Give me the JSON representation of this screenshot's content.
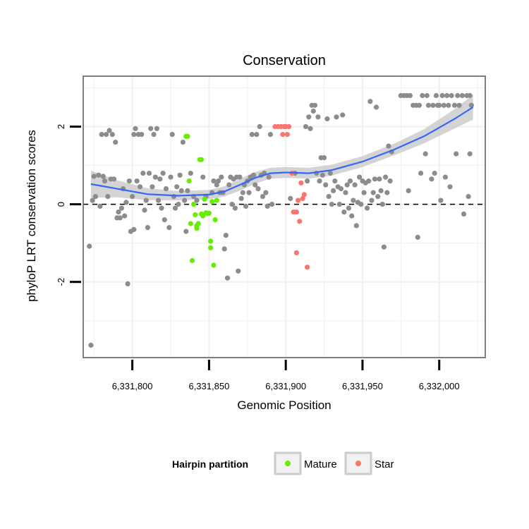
{
  "chart_data": {
    "type": "scatter",
    "title": "Conservation",
    "xlabel": "Genomic Position",
    "ylabel": "phyloP LRT conservation scores",
    "xlim": [
      6331768,
      6332030
    ],
    "ylim": [
      -3.95,
      3.3
    ],
    "x_ticks": [
      6331800,
      6331850,
      6331900,
      6331950,
      6332000
    ],
    "x_tick_labels": [
      "6,331,800",
      "6,331,850",
      "6,331,900",
      "6,331,950",
      "6,332,000"
    ],
    "y_ticks": [
      -2,
      0,
      2
    ],
    "y_tick_labels": [
      "-2",
      "0",
      "2"
    ],
    "grid": true,
    "reference_line": {
      "y": 0,
      "style": "dashed",
      "color": "#000000"
    },
    "legend": {
      "title": "Hairpin partition",
      "position": "bottom",
      "entries": [
        {
          "label": "Mature",
          "color": "#66EE00"
        },
        {
          "label": "Star",
          "color": "#F8766D"
        }
      ]
    },
    "colors": {
      "other": "#8C8C8C",
      "smooth_line": "#3366FF",
      "smooth_band": "#CCCCCC",
      "panel_border": "#7F7F7F",
      "grid": "#F2F2F2"
    },
    "smooth": {
      "x": [
        6331773,
        6331790,
        6331810,
        6331830,
        6331850,
        6331860,
        6331870,
        6331880,
        6331890,
        6331900,
        6331915,
        6331930,
        6331950,
        6331970,
        6331990,
        6332010,
        6332022
      ],
      "y": [
        0.52,
        0.4,
        0.26,
        0.22,
        0.25,
        0.33,
        0.5,
        0.68,
        0.8,
        0.82,
        0.8,
        0.88,
        1.1,
        1.4,
        1.75,
        2.2,
        2.5
      ],
      "se": [
        0.35,
        0.22,
        0.15,
        0.12,
        0.12,
        0.13,
        0.15,
        0.15,
        0.14,
        0.14,
        0.14,
        0.14,
        0.14,
        0.15,
        0.18,
        0.25,
        0.32
      ]
    },
    "series": [
      {
        "name": "Mature",
        "points": [
          [
            6331835,
            1.75
          ],
          [
            6331836,
            1.75
          ],
          [
            6331837,
            0.6
          ],
          [
            6331838,
            -0.5
          ],
          [
            6331839,
            -1.45
          ],
          [
            6331840,
            0.0
          ],
          [
            6331841,
            -0.27
          ],
          [
            6331842,
            -0.62
          ],
          [
            6331843,
            -0.5
          ],
          [
            6331844,
            1.15
          ],
          [
            6331845,
            1.15
          ],
          [
            6331846,
            -0.3
          ],
          [
            6331847,
            0.13
          ],
          [
            6331848,
            -0.22
          ],
          [
            6331849,
            -0.24
          ],
          [
            6331850,
            -0.23
          ],
          [
            6331851,
            -1.12
          ],
          [
            6331851,
            -0.95
          ],
          [
            6331852,
            0.07
          ],
          [
            6331853,
            -1.57
          ],
          [
            6331854,
            -0.4
          ],
          [
            6331855,
            0.1
          ],
          [
            6331842,
            -0.55
          ],
          [
            6331845,
            -0.25
          ]
        ]
      },
      {
        "name": "Star",
        "points": [
          [
            6331893,
            2.0
          ],
          [
            6331895,
            2.0
          ],
          [
            6331897,
            2.0
          ],
          [
            6331898,
            1.8
          ],
          [
            6331899,
            2.0
          ],
          [
            6331900,
            2.0
          ],
          [
            6331901,
            1.8
          ],
          [
            6331902,
            2.0
          ],
          [
            6331904,
            0.8
          ],
          [
            6331905,
            -0.2
          ],
          [
            6331907,
            -0.2
          ],
          [
            6331907,
            -1.25
          ],
          [
            6331908,
            0.1
          ],
          [
            6331909,
            -0.44
          ],
          [
            6331910,
            0.55
          ],
          [
            6331911,
            0.15
          ],
          [
            6331912,
            0.25
          ],
          [
            6331914,
            -1.62
          ]
        ]
      },
      {
        "name": "",
        "points": [
          [
            6331772,
            -1.08
          ],
          [
            6331773,
            -3.63
          ],
          [
            6331774,
            0.1
          ],
          [
            6331775,
            0.72
          ],
          [
            6331776,
            0.2
          ],
          [
            6331778,
            0.75
          ],
          [
            6331779,
            -0.05
          ],
          [
            6331780,
            1.8
          ],
          [
            6331781,
            0.72
          ],
          [
            6331782,
            0.6
          ],
          [
            6331783,
            1.8
          ],
          [
            6331784,
            0.2
          ],
          [
            6331785,
            1.9
          ],
          [
            6331786,
            0.65
          ],
          [
            6331787,
            1.8
          ],
          [
            6331788,
            0.65
          ],
          [
            6331789,
            1.6
          ],
          [
            6331790,
            -0.35
          ],
          [
            6331791,
            -0.2
          ],
          [
            6331792,
            -0.35
          ],
          [
            6331793,
            -0.1
          ],
          [
            6331794,
            0.4
          ],
          [
            6331795,
            -0.3
          ],
          [
            6331796,
            0.05
          ],
          [
            6331797,
            -2.05
          ],
          [
            6331798,
            0.6
          ],
          [
            6331799,
            -0.7
          ],
          [
            6331800,
            0.2
          ],
          [
            6331801,
            -0.65
          ],
          [
            6331801,
            1.8
          ],
          [
            6331802,
            1.95
          ],
          [
            6331803,
            0.6
          ],
          [
            6331804,
            1.8
          ],
          [
            6331805,
            0.45
          ],
          [
            6331806,
            1.8
          ],
          [
            6331807,
            0.8
          ],
          [
            6331808,
            -0.15
          ],
          [
            6331809,
            0.1
          ],
          [
            6331810,
            -0.6
          ],
          [
            6331811,
            0.8
          ],
          [
            6331812,
            1.95
          ],
          [
            6331813,
            0.45
          ],
          [
            6331814,
            1.8
          ],
          [
            6331815,
            0.7
          ],
          [
            6331816,
            1.95
          ],
          [
            6331817,
            0.1
          ],
          [
            6331818,
            0.65
          ],
          [
            6331819,
            -0.1
          ],
          [
            6331820,
            0.8
          ],
          [
            6331821,
            -0.4
          ],
          [
            6331822,
            0.4
          ],
          [
            6331824,
            -0.6
          ],
          [
            6331825,
            0.7
          ],
          [
            6331826,
            1.8
          ],
          [
            6331827,
            0.2
          ],
          [
            6331828,
            -0.1
          ],
          [
            6331829,
            0.45
          ],
          [
            6331830,
            0.0
          ],
          [
            6331831,
            0.75
          ],
          [
            6331832,
            0.35
          ],
          [
            6331833,
            1.6
          ],
          [
            6331834,
            0.1
          ],
          [
            6331835,
            -0.7
          ],
          [
            6331836,
            0.35
          ],
          [
            6331838,
            0.8
          ],
          [
            6331840,
            0.2
          ],
          [
            6331842,
            0.1
          ],
          [
            6331846,
            0.7
          ],
          [
            6331848,
            0.2
          ],
          [
            6331852,
            0.3
          ],
          [
            6331853,
            0.6
          ],
          [
            6331855,
            0.5
          ],
          [
            6331856,
            0.6
          ],
          [
            6331857,
            0.3
          ],
          [
            6331858,
            0.7
          ],
          [
            6331859,
            0.3
          ],
          [
            6331860,
            -1.15
          ],
          [
            6331861,
            -0.8
          ],
          [
            6331862,
            -1.9
          ],
          [
            6331863,
            0.5
          ],
          [
            6331864,
            0.7
          ],
          [
            6331865,
            0.0
          ],
          [
            6331866,
            0.65
          ],
          [
            6331867,
            -0.1
          ],
          [
            6331868,
            0.7
          ],
          [
            6331869,
            -1.72
          ],
          [
            6331870,
            0.7
          ],
          [
            6331871,
            0.15
          ],
          [
            6331872,
            0.3
          ],
          [
            6331873,
            0.5
          ],
          [
            6331874,
            -0.05
          ],
          [
            6331875,
            0.6
          ],
          [
            6331876,
            0.3
          ],
          [
            6331877,
            0.7
          ],
          [
            6331878,
            1.8
          ],
          [
            6331879,
            0.75
          ],
          [
            6331880,
            0.5
          ],
          [
            6331881,
            1.8
          ],
          [
            6331882,
            0.4
          ],
          [
            6331883,
            2.0
          ],
          [
            6331884,
            0.75
          ],
          [
            6331885,
            0.2
          ],
          [
            6331886,
            0.8
          ],
          [
            6331887,
            0.3
          ],
          [
            6331888,
            -0.05
          ],
          [
            6331889,
            0.7
          ],
          [
            6331890,
            1.8
          ],
          [
            6331891,
            0.0
          ],
          [
            6331903,
            0.15
          ],
          [
            6331906,
            0.8
          ],
          [
            6331913,
            2.0
          ],
          [
            6331914,
            0.6
          ],
          [
            6331915,
            2.25
          ],
          [
            6331916,
            1.95
          ],
          [
            6331917,
            2.55
          ],
          [
            6331918,
            2.4
          ],
          [
            6331919,
            2.55
          ],
          [
            6331920,
            0.8
          ],
          [
            6331921,
            2.25
          ],
          [
            6331922,
            0.6
          ],
          [
            6331923,
            1.2
          ],
          [
            6331924,
            0.75
          ],
          [
            6331925,
            1.2
          ],
          [
            6331926,
            0.5
          ],
          [
            6331927,
            2.2
          ],
          [
            6331928,
            0.2
          ],
          [
            6331929,
            0.8
          ],
          [
            6331930,
            0.0
          ],
          [
            6331931,
            0.35
          ],
          [
            6331932,
            0.6
          ],
          [
            6331933,
            2.25
          ],
          [
            6331934,
            0.45
          ],
          [
            6331935,
            0.0
          ],
          [
            6331936,
            0.4
          ],
          [
            6331937,
            2.3
          ],
          [
            6331938,
            -0.2
          ],
          [
            6331939,
            0.3
          ],
          [
            6331940,
            0.5
          ],
          [
            6331941,
            -0.1
          ],
          [
            6331942,
            0.6
          ],
          [
            6331943,
            -0.3
          ],
          [
            6331944,
            0.1
          ],
          [
            6331945,
            0.5
          ],
          [
            6331946,
            -0.55
          ],
          [
            6331947,
            0.05
          ],
          [
            6331948,
            0.7
          ],
          [
            6331949,
            0.0
          ],
          [
            6331950,
            0.6
          ],
          [
            6331951,
            0.3
          ],
          [
            6331952,
            0.55
          ],
          [
            6331953,
            -0.1
          ],
          [
            6331954,
            0.6
          ],
          [
            6331955,
            2.65
          ],
          [
            6331956,
            0.1
          ],
          [
            6331957,
            0.3
          ],
          [
            6331958,
            0.65
          ],
          [
            6331959,
            2.5
          ],
          [
            6331960,
            0.2
          ],
          [
            6331961,
            0.65
          ],
          [
            6331962,
            0.35
          ],
          [
            6331963,
            0.0
          ],
          [
            6331964,
            -1.1
          ],
          [
            6331965,
            0.7
          ],
          [
            6331966,
            0.3
          ],
          [
            6331967,
            1.5
          ],
          [
            6331968,
            0.6
          ],
          [
            6331969,
            1.35
          ],
          [
            6331975,
            2.8
          ],
          [
            6331977,
            2.8
          ],
          [
            6331979,
            2.8
          ],
          [
            6331980,
            0.35
          ],
          [
            6331981,
            2.8
          ],
          [
            6331983,
            2.55
          ],
          [
            6331985,
            2.55
          ],
          [
            6331986,
            -0.85
          ],
          [
            6331987,
            2.55
          ],
          [
            6331988,
            0.8
          ],
          [
            6331989,
            2.8
          ],
          [
            6331991,
            1.3
          ],
          [
            6331992,
            2.8
          ],
          [
            6331993,
            2.55
          ],
          [
            6331995,
            0.65
          ],
          [
            6331996,
            2.55
          ],
          [
            6331997,
            0.8
          ],
          [
            6331998,
            2.8
          ],
          [
            6331999,
            2.55
          ],
          [
            6332000,
            2.55
          ],
          [
            6332001,
            0.1
          ],
          [
            6332002,
            2.8
          ],
          [
            6332003,
            2.55
          ],
          [
            6332004,
            0.7
          ],
          [
            6332005,
            2.8
          ],
          [
            6332006,
            2.55
          ],
          [
            6332007,
            0.45
          ],
          [
            6332008,
            2.8
          ],
          [
            6332010,
            2.55
          ],
          [
            6332011,
            1.3
          ],
          [
            6332012,
            2.8
          ],
          [
            6332013,
            2.55
          ],
          [
            6332015,
            2.8
          ],
          [
            6332016,
            -0.25
          ],
          [
            6332018,
            2.8
          ],
          [
            6332019,
            0.2
          ],
          [
            6332020,
            1.3
          ],
          [
            6332020,
            2.8
          ],
          [
            6332021,
            2.55
          ]
        ]
      }
    ]
  }
}
